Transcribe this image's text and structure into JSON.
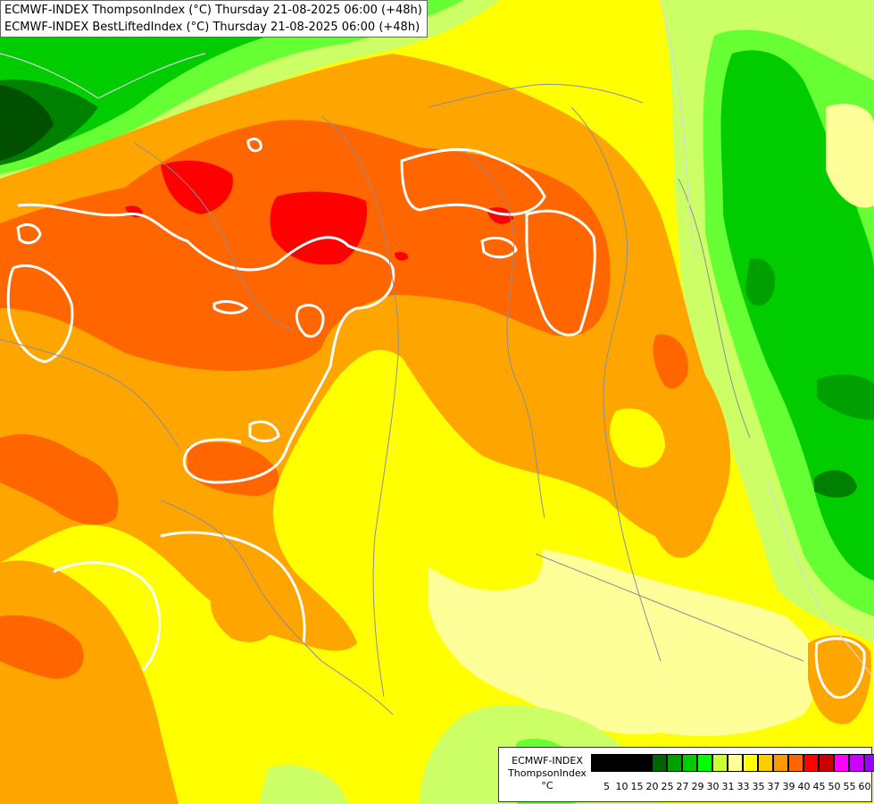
{
  "title": {
    "line1": "ECMWF-INDEX ThompsonIndex (°C) Thursday 21-08-2025 06:00 (+48h)",
    "line2": "ECMWF-INDEX BestLiftedIndex (°C) Thursday 21-08-2025 06:00 (+48h)"
  },
  "legend": {
    "model": "ECMWF-INDEX",
    "field": "ThompsonIndex",
    "unit": "°C",
    "ticks": [
      "5",
      "10",
      "15",
      "20",
      "25",
      "27",
      "29",
      "30",
      "31",
      "33",
      "35",
      "37",
      "39",
      "40",
      "45",
      "50",
      "55",
      "60"
    ],
    "colors": [
      "#000000",
      "#000000",
      "#000000",
      "#000000",
      "#006400",
      "#00a000",
      "#00cc00",
      "#00ff00",
      "#ccff33",
      "#ffff99",
      "#ffff00",
      "#ffcc00",
      "#ff9900",
      "#ff6600",
      "#ff0000",
      "#cc0000",
      "#ff00ff",
      "#cc00ff",
      "#9900ff",
      "#0000ff"
    ]
  },
  "map": {
    "colors": {
      "dark_green": "#006400",
      "green": "#00a000",
      "bright_green": "#00cc00",
      "lime": "#66ff33",
      "light_lime": "#ccff66",
      "pale_yellow": "#ffff99",
      "yellow": "#ffff00",
      "orange": "#ffa500",
      "dark_orange": "#ff6600",
      "red": "#ff0000",
      "contour": "#ffffff",
      "border": "#888888"
    }
  }
}
